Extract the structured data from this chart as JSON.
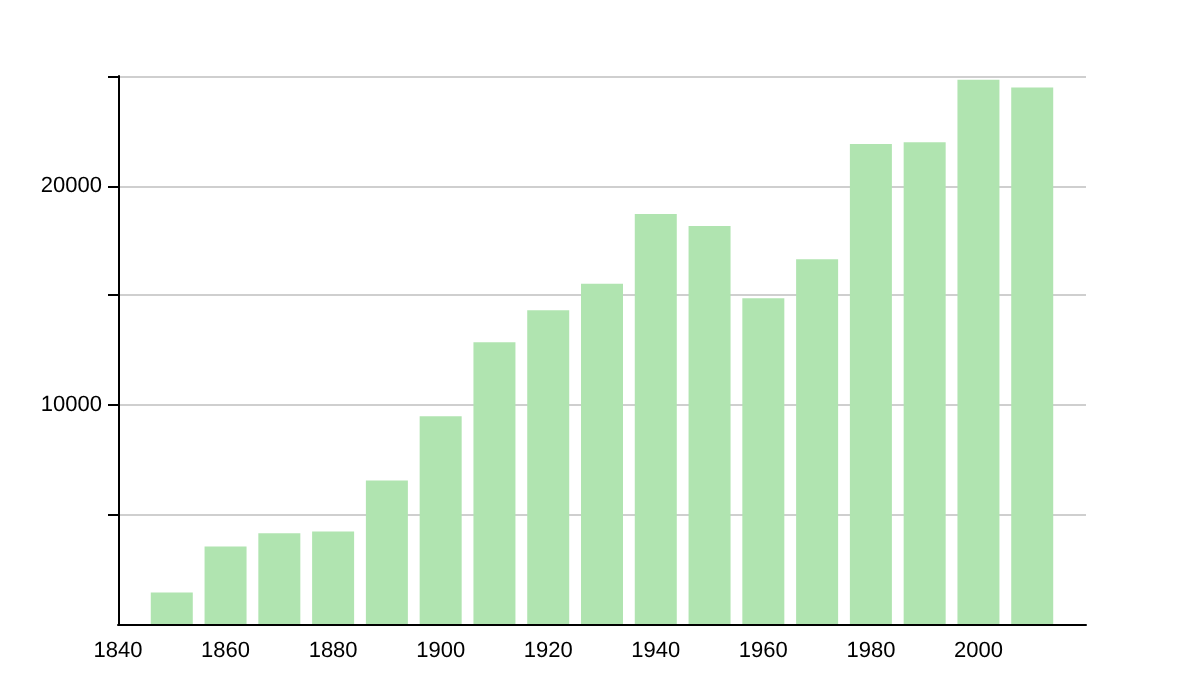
{
  "chart_data": {
    "type": "bar",
    "x": [
      1850,
      1860,
      1870,
      1880,
      1890,
      1900,
      1910,
      1920,
      1930,
      1940,
      1950,
      1960,
      1970,
      1980,
      1990,
      2000,
      2010
    ],
    "values": [
      1440,
      3530,
      4140,
      4220,
      6550,
      9480,
      12850,
      14310,
      15520,
      18710,
      18160,
      14860,
      16640,
      21900,
      21980,
      24830,
      24480
    ],
    "color": "#b0e4b0",
    "xlim": [
      1840,
      2020
    ],
    "xticks": [
      1840,
      1860,
      1880,
      1900,
      1920,
      1940,
      1960,
      1980,
      2000
    ],
    "ylim": [
      0,
      25000
    ],
    "yticks": [
      {
        "value": 5000,
        "label": null
      },
      10000,
      {
        "value": 15000,
        "label": null
      },
      20000,
      {
        "value": 25000,
        "label": null
      }
    ],
    "grid": "y"
  }
}
